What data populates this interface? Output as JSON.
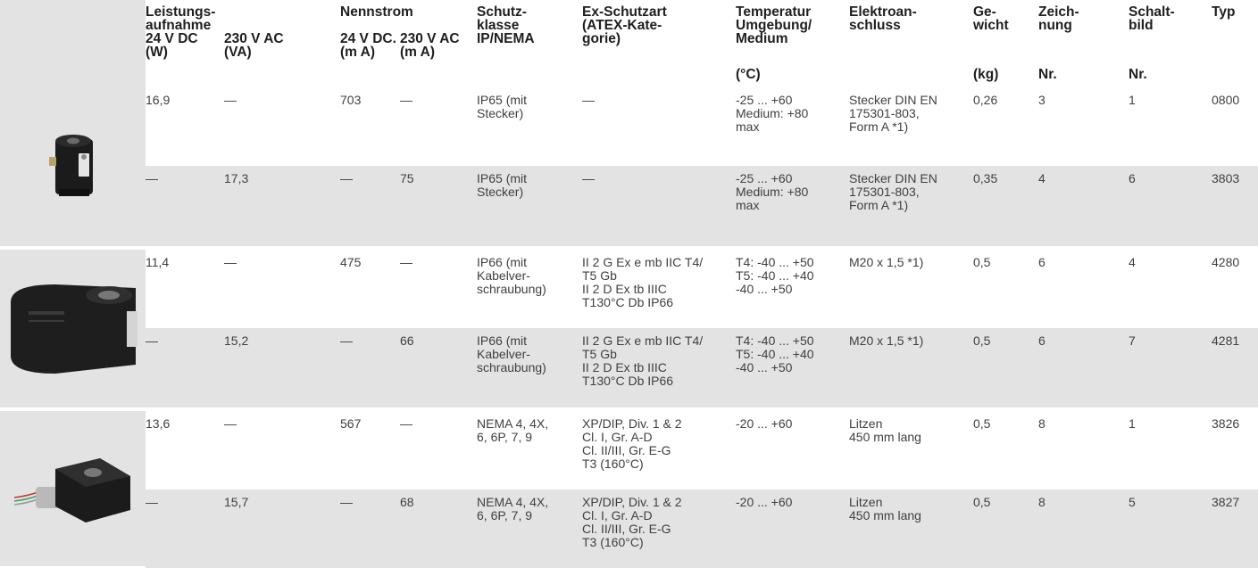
{
  "header": {
    "leistung": "Leistungs-\naufnahme",
    "nennstrom": "Nennstrom",
    "col_24vdc_power": "24 V DC\n(W)",
    "col_230vac_power": "230 V AC\n(VA)",
    "col_24vdc_current": "24 V DC.\n(m A)",
    "col_230vac_current": "230 V AC\n(m A)",
    "schutzklasse": "Schutz-\nklasse\nIP/NEMA",
    "exschutz": "Ex-Schutzart\n(ATEX-Kate-\ngorie)",
    "temperatur": "Temperatur\nUmgebung/\nMedium",
    "temperatur_unit": "(°C)",
    "elektro": "Elektroan-\nschluss",
    "gewicht": "Ge-\nwicht",
    "gewicht_unit": "(kg)",
    "zeichnung": "Zeich-\nnung",
    "zeichnung_unit": "Nr.",
    "schaltbild": "Schalt-\nbild",
    "schaltbild_unit": "Nr.",
    "typ": "Typ"
  },
  "rows": [
    {
      "p24": "16,9",
      "p230": "—",
      "i24": "703",
      "i230": "—",
      "schutz": "IP65 (mit\nStecker)",
      "ex": "—",
      "temp": "-25 ... +60\nMedium: +80\nmax",
      "elektro": "Stecker DIN EN\n175301-803,\nForm A *1)",
      "gewicht": "0,26",
      "zeichnung": "3",
      "schaltbild": "1",
      "typ": "0800"
    },
    {
      "p24": "—",
      "p230": "17,3",
      "i24": "—",
      "i230": "75",
      "schutz": "IP65 (mit\nStecker)",
      "ex": "—",
      "temp": "-25 ... +60\nMedium: +80\nmax",
      "elektro": "Stecker DIN EN\n175301-803,\nForm A *1)",
      "gewicht": "0,35",
      "zeichnung": "4",
      "schaltbild": "6",
      "typ": "3803"
    },
    {
      "p24": "11,4",
      "p230": "—",
      "i24": "475",
      "i230": "—",
      "schutz": "IP66 (mit\nKabelver-\nschraubung)",
      "ex": "II 2 G Ex e mb IIC T4/\nT5 Gb\nII 2 D Ex tb IIIC\nT130°C Db IP66",
      "temp": "T4: -40 ... +50\nT5: -40 ... +40\n-40 ... +50",
      "elektro": "M20 x 1,5 *1)",
      "gewicht": "0,5",
      "zeichnung": "6",
      "schaltbild": "4",
      "typ": "4280"
    },
    {
      "p24": "—",
      "p230": "15,2",
      "i24": "—",
      "i230": "66",
      "schutz": "IP66 (mit\nKabelver-\nschraubung)",
      "ex": "II 2 G Ex e mb IIC T4/\nT5 Gb\nII 2 D Ex tb IIIC\nT130°C Db IP66",
      "temp": "T4: -40 ... +50\nT5: -40 ... +40\n-40 ... +50",
      "elektro": "M20 x 1,5 *1)",
      "gewicht": "0,5",
      "zeichnung": "6",
      "schaltbild": "7",
      "typ": "4281"
    },
    {
      "p24": "13,6",
      "p230": "—",
      "i24": "567",
      "i230": "—",
      "schutz": "NEMA 4, 4X,\n6, 6P, 7, 9",
      "ex": "XP/DIP, Div. 1 & 2\nCl. I, Gr. A-D\nCl. II/III, Gr. E-G\nT3 (160°C)",
      "temp": "-20 ... +60",
      "elektro": "Litzen\n450 mm lang",
      "gewicht": "0,5",
      "zeichnung": "8",
      "schaltbild": "1",
      "typ": "3826"
    },
    {
      "p24": "—",
      "p230": "15,7",
      "i24": "—",
      "i230": "68",
      "schutz": "NEMA 4, 4X,\n6, 6P, 7, 9",
      "ex": "XP/DIP, Div. 1 & 2\nCl. I, Gr. A-D\nCl. II/III, Gr. E-G\nT3 (160°C)",
      "temp": "-20 ... +60",
      "elektro": "Litzen\n450 mm lang",
      "gewicht": "0,5",
      "zeichnung": "8",
      "schaltbild": "5",
      "typ": "3827"
    }
  ],
  "colors": {
    "row_gray": "#e3e3e3",
    "text": "#404040",
    "header_text": "#1e1e1e"
  },
  "images": [
    "coil-connector-photo",
    "coil-atex-photo",
    "coil-nema-photo"
  ]
}
